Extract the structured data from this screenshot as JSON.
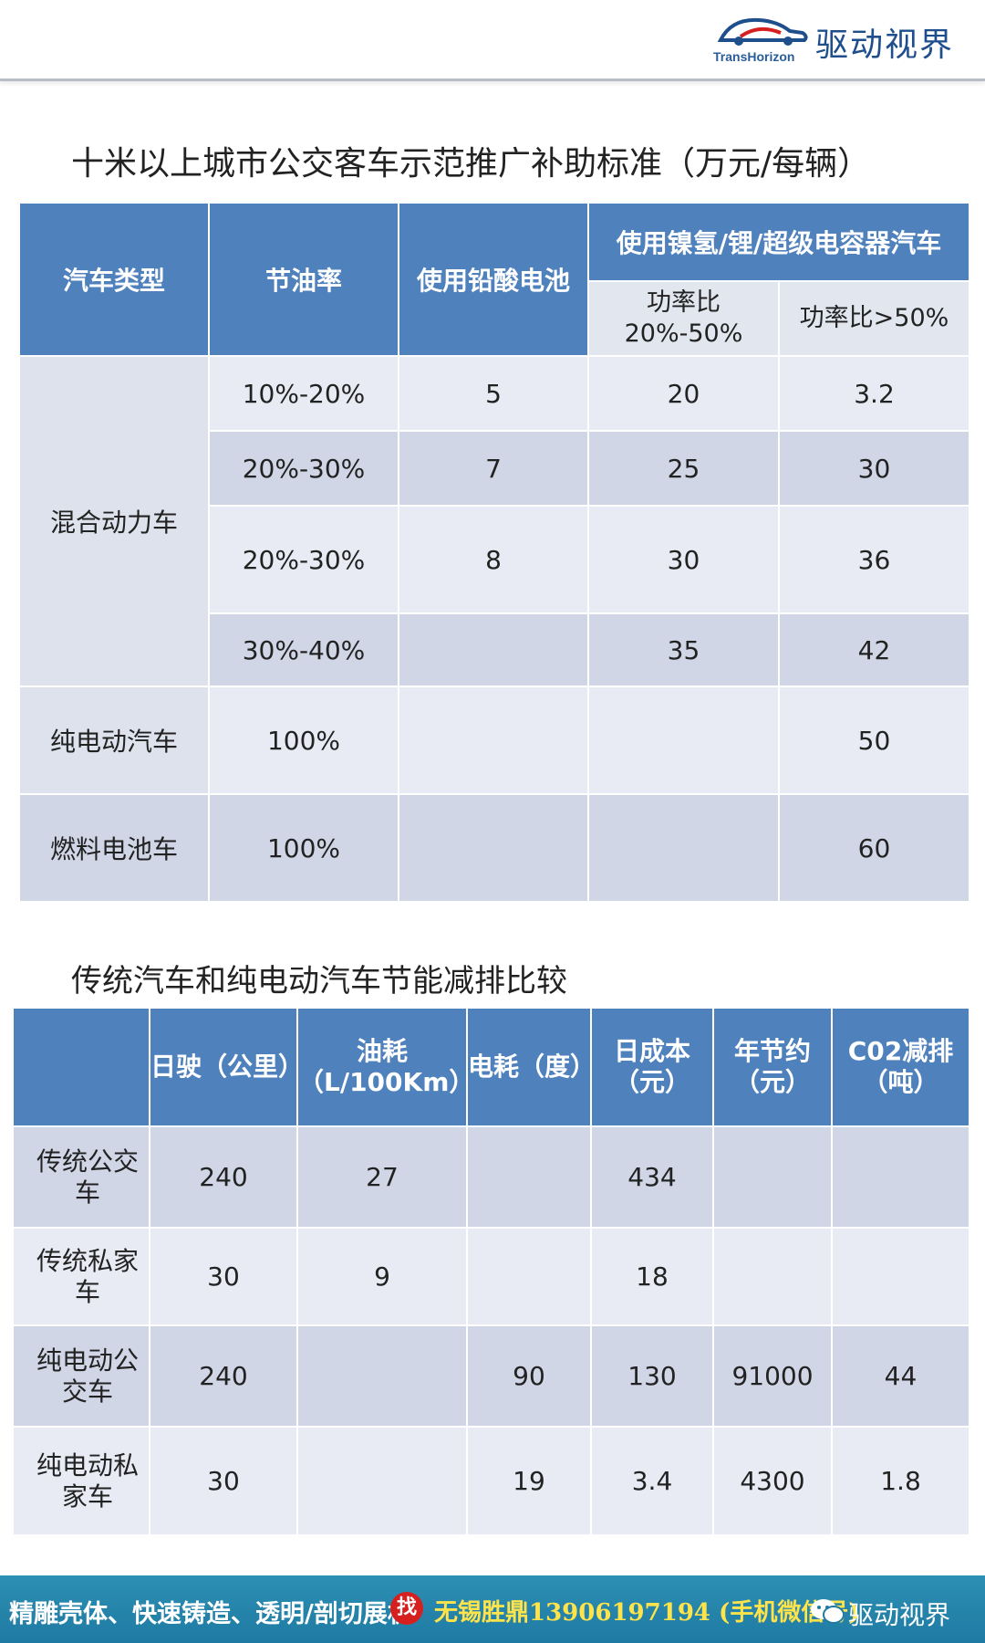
{
  "header": {
    "brand_en": "TransHorizon",
    "brand_cn": "驱动视界"
  },
  "section1": {
    "title": "十米以上城市公交客车示范推广补助标准（万元/每辆）",
    "table": {
      "headers": {
        "vehicle_type": "汽车类型",
        "fuel_saving": "节油率",
        "lead_acid": "使用铅酸电池",
        "advanced_group": "使用镍氢/锂/超级电容器汽车",
        "power_ratio_low": "功率比20%-50%",
        "power_ratio_high": "功率比>50%"
      },
      "hybrid_label": "混合动力车",
      "hybrid_rows": [
        {
          "rate": "10%-20%",
          "lead": "5",
          "low": "20",
          "high": "3.2"
        },
        {
          "rate": "20%-30%",
          "lead": "7",
          "low": "25",
          "high": "30"
        },
        {
          "rate": "20%-30%",
          "lead": "8",
          "low": "30",
          "high": "36"
        },
        {
          "rate": "30%-40%",
          "lead": "",
          "low": "35",
          "high": "42"
        }
      ],
      "ev_row": {
        "type": "纯电动汽车",
        "rate": "100%",
        "lead": "",
        "low": "",
        "high": "50"
      },
      "fc_row": {
        "type": "燃料电池车",
        "rate": "100%",
        "lead": "",
        "low": "",
        "high": "60"
      }
    }
  },
  "section2": {
    "title": "传统汽车和纯电动汽车节能减排比较",
    "table": {
      "headers": [
        "",
        "日驶（公里）",
        "油耗（L/100Km）",
        "电耗（度）",
        "日成本（元）",
        "年节约（元）",
        "C02减排（吨）"
      ],
      "rows": [
        [
          "传统公交车",
          "240",
          "27",
          "",
          "434",
          "",
          ""
        ],
        [
          "传统私家车",
          "30",
          "9",
          "",
          "18",
          "",
          ""
        ],
        [
          "纯电动公交车",
          "240",
          "",
          "90",
          "130",
          "91000",
          "44"
        ],
        [
          "纯电动私家车",
          "30",
          "",
          "19",
          "3.4",
          "4300",
          "1.8"
        ]
      ]
    }
  },
  "footer": {
    "left_text": "精雕壳体、快速铸造、透明/剖切展机",
    "badge": "找",
    "contact": "无锡胜鼎13906197194 (手机微信号)",
    "account": "驱动视界"
  },
  "colors": {
    "header_blue": "#4f81bd",
    "row_light": "#e8ebf3",
    "row_dark": "#d0d6e6",
    "footer_teal": "#1f7aa3",
    "footer_yellow": "#ffe34a"
  }
}
